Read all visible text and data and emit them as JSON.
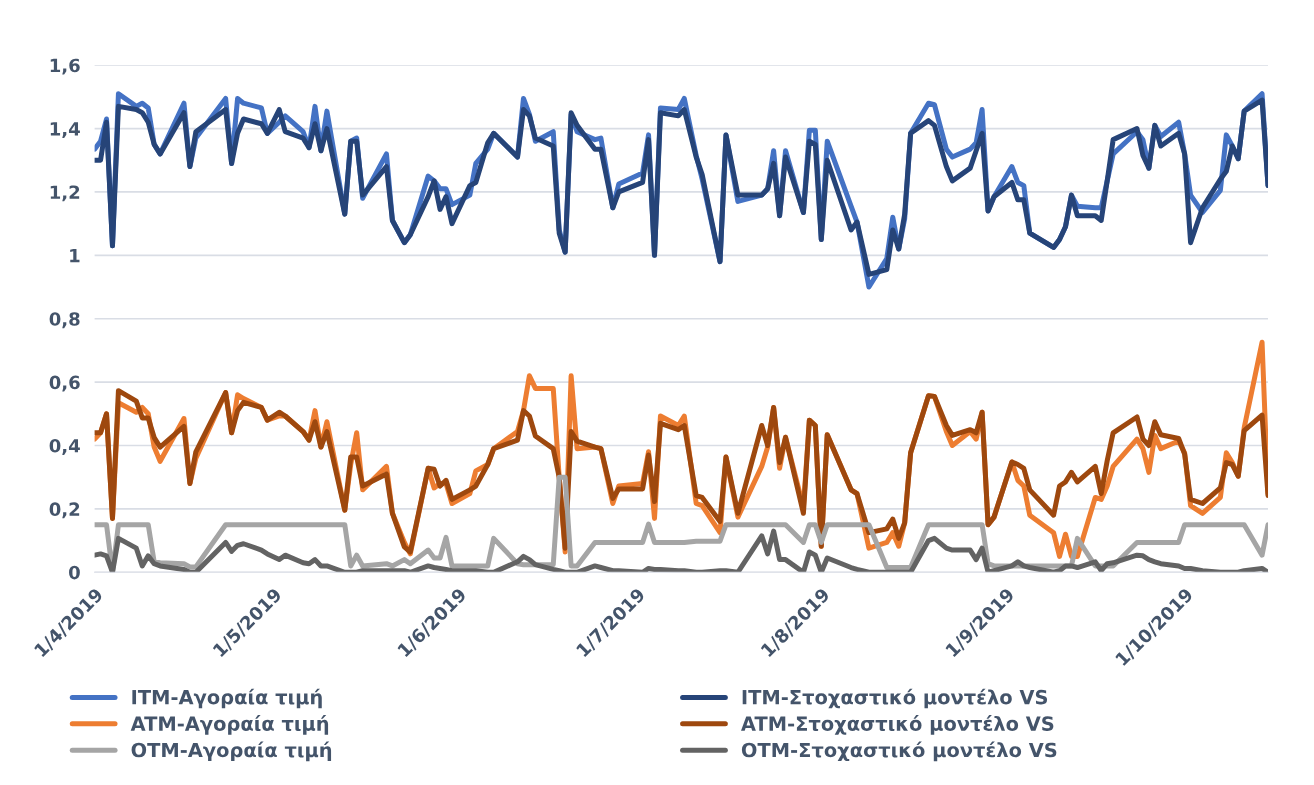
{
  "chart_data": {
    "type": "line",
    "x": [
      "2019-04-01",
      "2019-04-02",
      "2019-04-03",
      "2019-04-04",
      "2019-04-05",
      "2019-04-08",
      "2019-04-09",
      "2019-04-10",
      "2019-04-11",
      "2019-04-12",
      "2019-04-16",
      "2019-04-17",
      "2019-04-18",
      "2019-04-23",
      "2019-04-24",
      "2019-04-25",
      "2019-04-26",
      "2019-04-29",
      "2019-04-30",
      "2019-05-02",
      "2019-05-03",
      "2019-05-06",
      "2019-05-07",
      "2019-05-08",
      "2019-05-09",
      "2019-05-10",
      "2019-05-13",
      "2019-05-14",
      "2019-05-15",
      "2019-05-16",
      "2019-05-20",
      "2019-05-21",
      "2019-05-23",
      "2019-05-24",
      "2019-05-27",
      "2019-05-28",
      "2019-05-29",
      "2019-05-30",
      "2019-05-31",
      "2019-06-03",
      "2019-06-04",
      "2019-06-06",
      "2019-06-07",
      "2019-06-11",
      "2019-06-12",
      "2019-06-13",
      "2019-06-14",
      "2019-06-17",
      "2019-06-18",
      "2019-06-19",
      "2019-06-20",
      "2019-06-21",
      "2019-06-24",
      "2019-06-25",
      "2019-06-27",
      "2019-06-28",
      "2019-07-02",
      "2019-07-03",
      "2019-07-04",
      "2019-07-05",
      "2019-07-08",
      "2019-07-09",
      "2019-07-11",
      "2019-07-12",
      "2019-07-15",
      "2019-07-16",
      "2019-07-18",
      "2019-07-22",
      "2019-07-23",
      "2019-07-24",
      "2019-07-25",
      "2019-07-26",
      "2019-07-29",
      "2019-07-30",
      "2019-07-31",
      "2019-08-01",
      "2019-08-02",
      "2019-08-06",
      "2019-08-07",
      "2019-08-09",
      "2019-08-12",
      "2019-08-13",
      "2019-08-14",
      "2019-08-15",
      "2019-08-16",
      "2019-08-19",
      "2019-08-20",
      "2019-08-22",
      "2019-08-23",
      "2019-08-26",
      "2019-08-27",
      "2019-08-28",
      "2019-08-29",
      "2019-08-30",
      "2019-09-02",
      "2019-09-03",
      "2019-09-04",
      "2019-09-05",
      "2019-09-09",
      "2019-09-10",
      "2019-09-11",
      "2019-09-12",
      "2019-09-13",
      "2019-09-16",
      "2019-09-17",
      "2019-09-18",
      "2019-09-19",
      "2019-09-23",
      "2019-09-24",
      "2019-09-25",
      "2019-09-26",
      "2019-09-27",
      "2019-09-30",
      "2019-10-01",
      "2019-10-02",
      "2019-10-04",
      "2019-10-07",
      "2019-10-08",
      "2019-10-09",
      "2019-10-10",
      "2019-10-11",
      "2019-10-14",
      "2019-10-15"
    ],
    "series": [
      {
        "name": "ITM-Αγοραία τιμή",
        "color": "#4472c4",
        "values": [
          1.335,
          1.36,
          1.43,
          1.03,
          1.51,
          1.47,
          1.48,
          1.465,
          1.35,
          1.32,
          1.48,
          1.28,
          1.37,
          1.495,
          1.29,
          1.495,
          1.48,
          1.465,
          1.385,
          1.42,
          1.44,
          1.39,
          1.34,
          1.47,
          1.33,
          1.455,
          1.13,
          1.36,
          1.37,
          1.18,
          1.32,
          1.11,
          1.04,
          1.065,
          1.25,
          1.235,
          1.21,
          1.21,
          1.16,
          1.19,
          1.29,
          1.335,
          1.385,
          1.31,
          1.495,
          1.445,
          1.36,
          1.39,
          1.08,
          1.01,
          1.445,
          1.39,
          1.365,
          1.37,
          1.15,
          1.225,
          1.26,
          1.38,
          1.0,
          1.465,
          1.46,
          1.495,
          1.315,
          1.24,
          0.98,
          1.38,
          1.17,
          1.19,
          1.21,
          1.33,
          1.125,
          1.33,
          1.135,
          1.395,
          1.395,
          1.05,
          1.36,
          1.155,
          1.105,
          0.9,
          0.99,
          1.12,
          1.02,
          1.115,
          1.385,
          1.48,
          1.475,
          1.335,
          1.31,
          1.335,
          1.355,
          1.46,
          1.14,
          1.185,
          1.28,
          1.23,
          1.22,
          1.07,
          1.025,
          1.05,
          1.09,
          1.19,
          1.155,
          1.15,
          1.15,
          1.235,
          1.32,
          1.39,
          1.365,
          1.275,
          1.41,
          1.375,
          1.42,
          1.32,
          1.19,
          1.135,
          1.205,
          1.38,
          1.345,
          1.305,
          1.455,
          1.51,
          1.22
        ]
      },
      {
        "name": "ITM-Στοχαστικό μοντέλο VS",
        "color": "#264478",
        "values": [
          1.3,
          1.3,
          1.42,
          1.03,
          1.47,
          1.46,
          1.45,
          1.42,
          1.35,
          1.32,
          1.45,
          1.28,
          1.39,
          1.46,
          1.29,
          1.385,
          1.43,
          1.415,
          1.385,
          1.46,
          1.39,
          1.37,
          1.34,
          1.415,
          1.33,
          1.4,
          1.13,
          1.36,
          1.36,
          1.19,
          1.28,
          1.11,
          1.04,
          1.065,
          1.185,
          1.235,
          1.145,
          1.185,
          1.1,
          1.22,
          1.23,
          1.355,
          1.385,
          1.31,
          1.46,
          1.44,
          1.37,
          1.345,
          1.07,
          1.01,
          1.45,
          1.41,
          1.335,
          1.335,
          1.15,
          1.2,
          1.23,
          1.365,
          1.0,
          1.45,
          1.44,
          1.46,
          1.31,
          1.255,
          0.98,
          1.38,
          1.19,
          1.19,
          1.21,
          1.29,
          1.125,
          1.31,
          1.135,
          1.36,
          1.35,
          1.05,
          1.3,
          1.08,
          1.105,
          0.94,
          0.955,
          1.08,
          1.02,
          1.13,
          1.385,
          1.425,
          1.41,
          1.28,
          1.235,
          1.275,
          1.33,
          1.385,
          1.14,
          1.185,
          1.23,
          1.175,
          1.175,
          1.07,
          1.025,
          1.05,
          1.09,
          1.19,
          1.125,
          1.125,
          1.11,
          1.235,
          1.365,
          1.4,
          1.315,
          1.275,
          1.41,
          1.345,
          1.385,
          1.32,
          1.04,
          1.15,
          1.24,
          1.265,
          1.345,
          1.305,
          1.455,
          1.49,
          1.22
        ]
      },
      {
        "name": "ATM-Αγοραία τιμή",
        "color": "#ed7d31",
        "values": [
          0.42,
          0.44,
          0.5,
          0.17,
          0.535,
          0.505,
          0.52,
          0.5,
          0.395,
          0.35,
          0.485,
          0.28,
          0.36,
          0.567,
          0.44,
          0.56,
          0.548,
          0.52,
          0.48,
          0.493,
          0.493,
          0.444,
          0.417,
          0.51,
          0.395,
          0.475,
          0.196,
          0.34,
          0.44,
          0.26,
          0.334,
          0.186,
          0.094,
          0.058,
          0.328,
          0.266,
          0.28,
          0.28,
          0.217,
          0.248,
          0.32,
          0.34,
          0.39,
          0.444,
          0.51,
          0.62,
          0.58,
          0.58,
          0.3,
          0.064,
          0.62,
          0.39,
          0.395,
          0.39,
          0.217,
          0.272,
          0.28,
          0.38,
          0.17,
          0.493,
          0.463,
          0.493,
          0.217,
          0.21,
          0.125,
          0.364,
          0.174,
          0.334,
          0.395,
          0.52,
          0.328,
          0.426,
          0.205,
          0.48,
          0.463,
          0.082,
          0.434,
          0.26,
          0.248,
          0.076,
          0.094,
          0.125,
          0.082,
          0.156,
          0.377,
          0.557,
          0.555,
          0.444,
          0.4,
          0.444,
          0.42,
          0.505,
          0.15,
          0.174,
          0.348,
          0.29,
          0.272,
          0.18,
          0.125,
          0.05,
          0.12,
          0.05,
          0.05,
          0.236,
          0.23,
          0.272,
          0.334,
          0.42,
          0.39,
          0.315,
          0.432,
          0.39,
          0.414,
          0.377,
          0.21,
          0.186,
          0.236,
          0.377,
          0.346,
          0.303,
          0.456,
          0.726,
          0.248
        ]
      },
      {
        "name": "ATM-Στοχαστικό μοντέλο VS",
        "color": "#9e480e",
        "values": [
          0.44,
          0.44,
          0.5,
          0.17,
          0.573,
          0.54,
          0.487,
          0.487,
          0.425,
          0.395,
          0.46,
          0.28,
          0.38,
          0.567,
          0.44,
          0.51,
          0.536,
          0.52,
          0.48,
          0.505,
          0.493,
          0.444,
          0.417,
          0.475,
          0.395,
          0.444,
          0.196,
          0.364,
          0.364,
          0.272,
          0.31,
          0.186,
          0.08,
          0.064,
          0.328,
          0.325,
          0.272,
          0.29,
          0.23,
          0.26,
          0.272,
          0.34,
          0.39,
          0.417,
          0.51,
          0.493,
          0.43,
          0.39,
          0.3,
          0.076,
          0.444,
          0.414,
          0.395,
          0.39,
          0.233,
          0.263,
          0.263,
          0.37,
          0.223,
          0.47,
          0.45,
          0.463,
          0.242,
          0.236,
          0.16,
          0.364,
          0.186,
          0.463,
          0.4,
          0.52,
          0.346,
          0.426,
          0.186,
          0.48,
          0.463,
          0.082,
          0.434,
          0.26,
          0.248,
          0.125,
          0.137,
          0.168,
          0.107,
          0.156,
          0.377,
          0.557,
          0.555,
          0.463,
          0.432,
          0.45,
          0.44,
          0.505,
          0.15,
          0.174,
          0.348,
          0.34,
          0.328,
          0.26,
          0.18,
          0.272,
          0.285,
          0.315,
          0.285,
          0.334,
          0.248,
          0.352,
          0.44,
          0.49,
          0.42,
          0.4,
          0.475,
          0.434,
          0.422,
          0.373,
          0.23,
          0.217,
          0.266,
          0.346,
          0.34,
          0.303,
          0.447,
          0.496,
          0.242
        ]
      },
      {
        "name": "OTM-Αγοραία τιμή",
        "color": "#a5a5a5",
        "values": [
          0.15,
          0.15,
          0.15,
          0,
          0.15,
          0.15,
          0.15,
          0.15,
          0.033,
          0.03,
          0.027,
          0.017,
          0.017,
          0.15,
          0.15,
          0.15,
          0.15,
          0.15,
          0.15,
          0.15,
          0.15,
          0.15,
          0.15,
          0.15,
          0.15,
          0.15,
          0.15,
          0.02,
          0.054,
          0.02,
          0.027,
          0.02,
          0.04,
          0.027,
          0.07,
          0.045,
          0.045,
          0.11,
          0.02,
          0.02,
          0.02,
          0.02,
          0.107,
          0.027,
          0.024,
          0.024,
          0.024,
          0.024,
          0.3,
          0.3,
          0.02,
          0.02,
          0.094,
          0.094,
          0.094,
          0.094,
          0.094,
          0.152,
          0.094,
          0.094,
          0.094,
          0.094,
          0.098,
          0.098,
          0.098,
          0.15,
          0.15,
          0.15,
          0.15,
          0.15,
          0.15,
          0.15,
          0.094,
          0.15,
          0.15,
          0.094,
          0.15,
          0.15,
          0.15,
          0.15,
          0.015,
          0.015,
          0.015,
          0.015,
          0.015,
          0.15,
          0.15,
          0.15,
          0.15,
          0.15,
          0.15,
          0.15,
          0.027,
          0.02,
          0.02,
          0.02,
          0.02,
          0.02,
          0.02,
          0.02,
          0.02,
          0.02,
          0.107,
          0.02,
          0.02,
          0.02,
          0.02,
          0.094,
          0.094,
          0.094,
          0.094,
          0.094,
          0.094,
          0.15,
          0.15,
          0.15,
          0.15,
          0.15,
          0.15,
          0.15,
          0.15,
          0.054,
          0.15
        ]
      },
      {
        "name": "OTM-Στοχαστικό μοντέλο VS",
        "color": "#636363",
        "values": [
          0.054,
          0.058,
          0.052,
          0,
          0.107,
          0.076,
          0.02,
          0.052,
          0.027,
          0.02,
          0.009,
          0,
          0,
          0.094,
          0.066,
          0.085,
          0.09,
          0.07,
          0.058,
          0.04,
          0.054,
          0.03,
          0.027,
          0.04,
          0.02,
          0.02,
          0,
          0,
          0,
          0.005,
          0.005,
          0.005,
          0.005,
          0,
          0.02,
          0.015,
          0.012,
          0.009,
          0.005,
          0.005,
          0.005,
          0,
          0,
          0.033,
          0.05,
          0.04,
          0.024,
          0.009,
          0.005,
          0,
          0,
          0,
          0.02,
          0.015,
          0.005,
          0.005,
          0,
          0.012,
          0.009,
          0.009,
          0.005,
          0.005,
          0,
          0,
          0.005,
          0.005,
          0,
          0.115,
          0.058,
          0.13,
          0.04,
          0.04,
          0,
          0.064,
          0.054,
          0,
          0.045,
          0.015,
          0.009,
          0,
          0,
          0,
          0,
          0,
          0,
          0.1,
          0.107,
          0.076,
          0.07,
          0.07,
          0.04,
          0.076,
          0,
          0.005,
          0.02,
          0.033,
          0.02,
          0.015,
          0,
          0.005,
          0.02,
          0.02,
          0.015,
          0.033,
          0.005,
          0.027,
          0.03,
          0.054,
          0.052,
          0.04,
          0.033,
          0.027,
          0.02,
          0.012,
          0.012,
          0.005,
          0,
          0,
          0,
          0,
          0.005,
          0.012,
          0
        ]
      }
    ],
    "xlim": [
      "2019-04-01",
      "2019-10-15"
    ],
    "xticks": [
      {
        "value": "2019-04-01",
        "label": "1/4/2019"
      },
      {
        "value": "2019-05-01",
        "label": "1/5/2019"
      },
      {
        "value": "2019-06-01",
        "label": "1/6/2019"
      },
      {
        "value": "2019-07-01",
        "label": "1/7/2019"
      },
      {
        "value": "2019-08-01",
        "label": "1/8/2019"
      },
      {
        "value": "2019-09-01",
        "label": "1/9/2019"
      },
      {
        "value": "2019-10-01",
        "label": "1/10/2019"
      }
    ],
    "ylim": [
      0,
      1.6
    ],
    "yticks": [
      0,
      {
        "value": 0.2,
        "label": "0,2"
      },
      {
        "value": 0.4,
        "label": "0,4"
      },
      {
        "value": 0.6,
        "label": "0,6"
      },
      {
        "value": 0.8,
        "label": "0,8"
      },
      1,
      {
        "value": 1.2,
        "label": "1,2"
      },
      {
        "value": 1.4,
        "label": "1,4"
      },
      {
        "value": 1.6,
        "label": "1,6"
      }
    ],
    "grid": "y",
    "legend": "bottom",
    "marker": "none",
    "line_style": "solid"
  }
}
